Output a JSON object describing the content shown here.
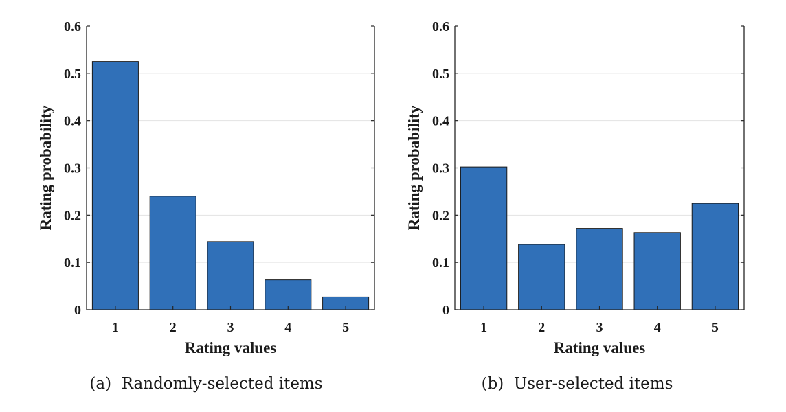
{
  "chart_data": [
    {
      "type": "bar",
      "caption": "(a)  Randomly-selected items",
      "categories": [
        "1",
        "2",
        "3",
        "4",
        "5"
      ],
      "values": [
        0.525,
        0.24,
        0.144,
        0.063,
        0.027
      ],
      "xlabel": "Rating values",
      "ylabel": "Rating probability",
      "ylim": [
        0,
        0.6
      ],
      "yticks": [
        "0",
        "0.1",
        "0.2",
        "0.3",
        "0.4",
        "0.5",
        "0.6"
      ],
      "grid": true,
      "bar_color": "#3070b8"
    },
    {
      "type": "bar",
      "caption": "(b)  User-selected items",
      "categories": [
        "1",
        "2",
        "3",
        "4",
        "5"
      ],
      "values": [
        0.302,
        0.138,
        0.172,
        0.163,
        0.225
      ],
      "xlabel": "Rating values",
      "ylabel": "Rating probability",
      "ylim": [
        0,
        0.6
      ],
      "yticks": [
        "0",
        "0.1",
        "0.2",
        "0.3",
        "0.4",
        "0.5",
        "0.6"
      ],
      "grid": true,
      "bar_color": "#3070b8"
    }
  ]
}
